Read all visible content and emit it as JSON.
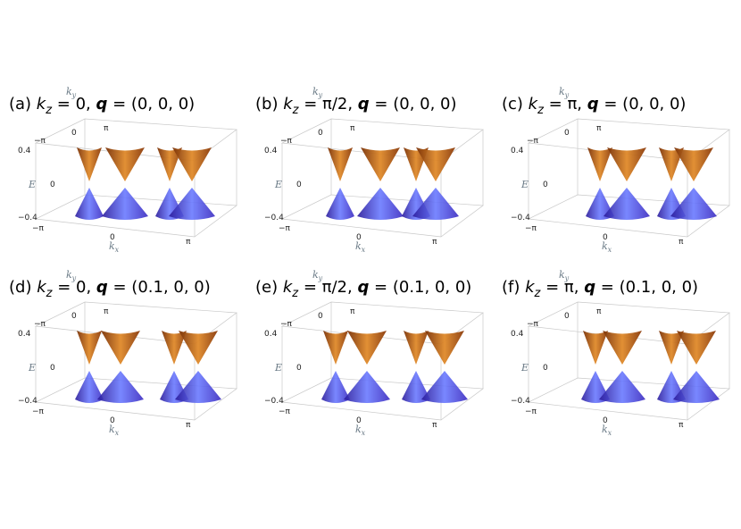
{
  "axes": {
    "k": "k",
    "x": "x",
    "y": "y",
    "E": "E",
    "k_ticks": [
      "−π",
      "0",
      "π"
    ],
    "e_ticks": [
      "0.4",
      "0",
      "−0.4"
    ]
  },
  "panels": [
    {
      "title": [
        {
          "t": "(a) ",
          "s": "n"
        },
        {
          "t": "k",
          "s": "i"
        },
        {
          "t": "z",
          "s": "sub"
        },
        {
          "t": " = 0, ",
          "s": "n"
        },
        {
          "t": "q",
          "s": "bi"
        },
        {
          "t": " = (0, 0, 0)",
          "s": "n"
        }
      ]
    },
    {
      "title": [
        {
          "t": "(b) ",
          "s": "n"
        },
        {
          "t": "k",
          "s": "i"
        },
        {
          "t": "z",
          "s": "sub"
        },
        {
          "t": " = π/2, ",
          "s": "n"
        },
        {
          "t": "q",
          "s": "bi"
        },
        {
          "t": " = (0, 0, 0)",
          "s": "n"
        }
      ]
    },
    {
      "title": [
        {
          "t": "(c) ",
          "s": "n"
        },
        {
          "t": "k",
          "s": "i"
        },
        {
          "t": "z",
          "s": "sub"
        },
        {
          "t": " = π, ",
          "s": "n"
        },
        {
          "t": "q",
          "s": "bi"
        },
        {
          "t": " = (0, 0, 0)",
          "s": "n"
        }
      ]
    },
    {
      "title": [
        {
          "t": "(d) ",
          "s": "n"
        },
        {
          "t": "k",
          "s": "i"
        },
        {
          "t": "z",
          "s": "sub"
        },
        {
          "t": " = 0, ",
          "s": "n"
        },
        {
          "t": "q",
          "s": "bi"
        },
        {
          "t": " = (0.1, 0, 0)",
          "s": "n"
        }
      ]
    },
    {
      "title": [
        {
          "t": "(e) ",
          "s": "n"
        },
        {
          "t": "k",
          "s": "i"
        },
        {
          "t": "z",
          "s": "sub"
        },
        {
          "t": " = π/2, ",
          "s": "n"
        },
        {
          "t": "q",
          "s": "bi"
        },
        {
          "t": " = (0.1, 0, 0)",
          "s": "n"
        }
      ]
    },
    {
      "title": [
        {
          "t": "(f) ",
          "s": "n"
        },
        {
          "t": "k",
          "s": "i"
        },
        {
          "t": "z",
          "s": "sub"
        },
        {
          "t": " = π, ",
          "s": "n"
        },
        {
          "t": "q",
          "s": "bi"
        },
        {
          "t": " = (0.1, 0, 0)",
          "s": "n"
        }
      ]
    }
  ]
}
